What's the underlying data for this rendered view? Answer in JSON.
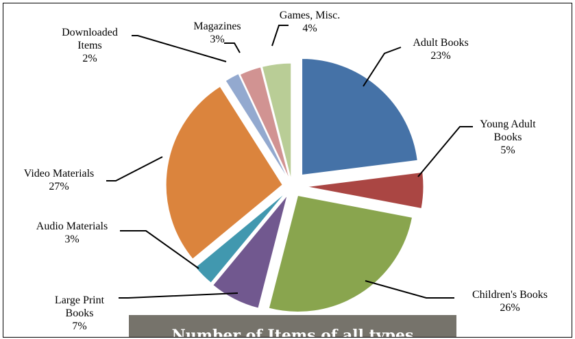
{
  "chart_data": {
    "type": "pie",
    "title": "Number of Items of all types",
    "exploded": true,
    "slices": [
      {
        "label": "Adult Books",
        "value": 23,
        "pct_label": "23%",
        "color": "#4572a7"
      },
      {
        "label": "Young Adult Books",
        "value": 5,
        "pct_label": "5%",
        "color": "#aa4643"
      },
      {
        "label": "Children's Books",
        "value": 26,
        "pct_label": "26%",
        "color": "#89a54e"
      },
      {
        "label": "Large Print Books",
        "value": 7,
        "pct_label": "7%",
        "color": "#71588f"
      },
      {
        "label": "Audio Materials",
        "value": 3,
        "pct_label": "3%",
        "color": "#4198af"
      },
      {
        "label": "Video Materials",
        "value": 27,
        "pct_label": "27%",
        "color": "#db843d"
      },
      {
        "label": "Downloaded Items",
        "value": 2,
        "pct_label": "2%",
        "color": "#93a9cf"
      },
      {
        "label": "Magazines",
        "value": 3,
        "pct_label": "3%",
        "color": "#d19392"
      },
      {
        "label": "Games, Misc.",
        "value": 4,
        "pct_label": "4%",
        "color": "#b9cd96"
      }
    ],
    "data_labels": [
      {
        "lines": [
          "Adult Books",
          "23%"
        ]
      },
      {
        "lines": [
          "Young Adult",
          "Books",
          "5%"
        ]
      },
      {
        "lines": [
          "Children's Books",
          "26%"
        ]
      },
      {
        "lines": [
          "Large Print",
          "Books",
          "7%"
        ]
      },
      {
        "lines": [
          "Audio Materials",
          "3%"
        ]
      },
      {
        "lines": [
          "Video Materials",
          "27%"
        ]
      },
      {
        "lines": [
          "Downloaded",
          "Items",
          "2%"
        ]
      },
      {
        "lines": [
          "Magazines",
          "3%"
        ]
      },
      {
        "lines": [
          "Games, Misc.",
          "4%"
        ]
      }
    ]
  }
}
